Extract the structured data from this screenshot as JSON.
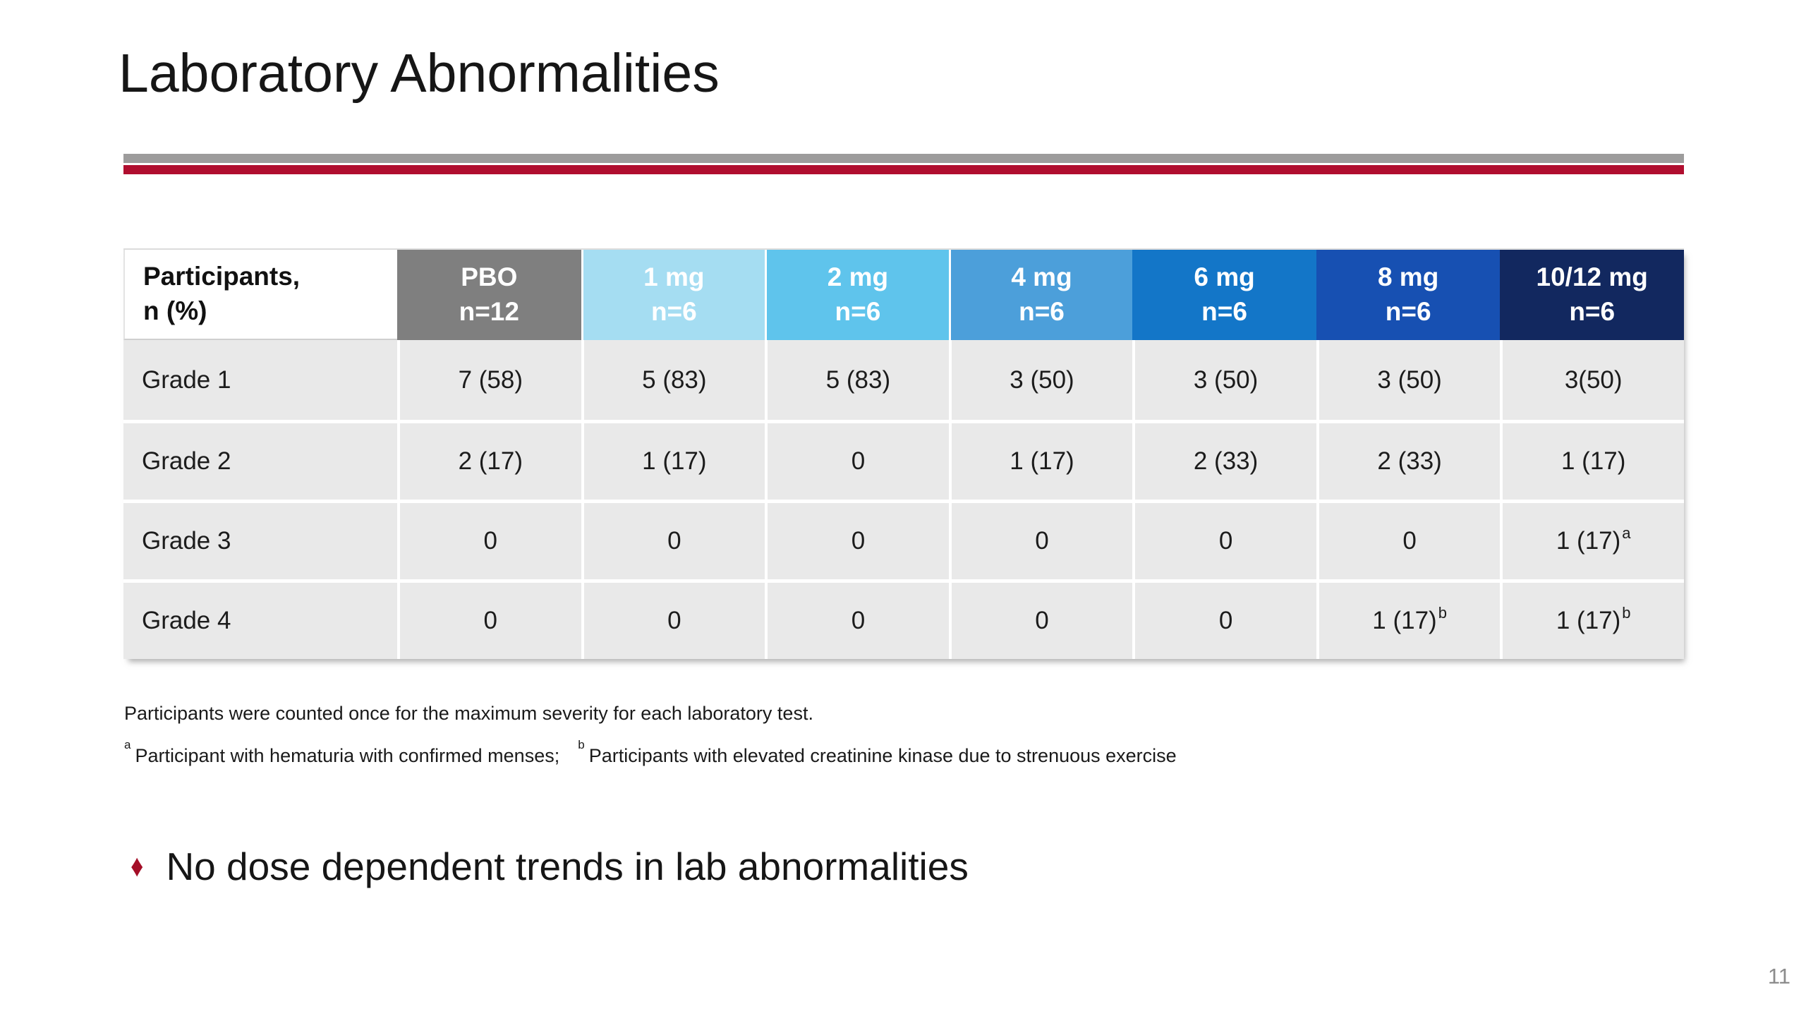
{
  "title": "Laboratory Abnormalities",
  "accent": {
    "rule_gray": "#9d9c9c",
    "rule_red": "#b00e2f",
    "bullet_red": "#a40e27"
  },
  "table": {
    "row_header": {
      "line1": "Participants,",
      "line2": "n (%)"
    },
    "columns": [
      {
        "label": "PBO",
        "n": "n=12",
        "color": "#7f7f7f"
      },
      {
        "label": "1 mg",
        "n": "n=6",
        "color": "#a5ddf2"
      },
      {
        "label": "2 mg",
        "n": "n=6",
        "color": "#5fc4ec"
      },
      {
        "label": "4 mg",
        "n": "n=6",
        "color": "#4c9fda"
      },
      {
        "label": "6 mg",
        "n": "n=6",
        "color": "#1376c8"
      },
      {
        "label": "8 mg",
        "n": "n=6",
        "color": "#1750b2"
      },
      {
        "label": "10/12 mg",
        "n": "n=6",
        "color": "#12285f"
      }
    ],
    "rows": [
      {
        "label": "Grade 1",
        "cells": [
          {
            "v": "7 (58)"
          },
          {
            "v": "5 (83)"
          },
          {
            "v": "5 (83)"
          },
          {
            "v": "3 (50)"
          },
          {
            "v": "3 (50)"
          },
          {
            "v": "3 (50)"
          },
          {
            "v": "3(50)"
          }
        ]
      },
      {
        "label": "Grade 2",
        "cells": [
          {
            "v": "2 (17)"
          },
          {
            "v": "1 (17)"
          },
          {
            "v": "0"
          },
          {
            "v": "1 (17)"
          },
          {
            "v": "2 (33)"
          },
          {
            "v": "2 (33)"
          },
          {
            "v": "1 (17)"
          }
        ]
      },
      {
        "label": "Grade 3",
        "cells": [
          {
            "v": "0"
          },
          {
            "v": "0"
          },
          {
            "v": "0"
          },
          {
            "v": "0"
          },
          {
            "v": "0"
          },
          {
            "v": "0"
          },
          {
            "v": "1 (17)",
            "sup": "a"
          }
        ]
      },
      {
        "label": "Grade 4",
        "cells": [
          {
            "v": "0"
          },
          {
            "v": "0"
          },
          {
            "v": "0"
          },
          {
            "v": "0"
          },
          {
            "v": "0"
          },
          {
            "v": "1 (17)",
            "sup": "b"
          },
          {
            "v": "1 (17)",
            "sup": "b"
          }
        ]
      }
    ]
  },
  "footnotes": {
    "line1": "Participants were counted once for the maximum severity for each laboratory test.",
    "note_a": {
      "sup": "a",
      "text": "Participant with hematuria with confirmed menses;"
    },
    "note_b": {
      "sup": "b",
      "text": "Participants with elevated creatinine kinase due to strenuous exercise"
    }
  },
  "bullet": {
    "marker": "♦",
    "text": "No dose dependent trends in lab abnormalities"
  },
  "page_number": "11"
}
